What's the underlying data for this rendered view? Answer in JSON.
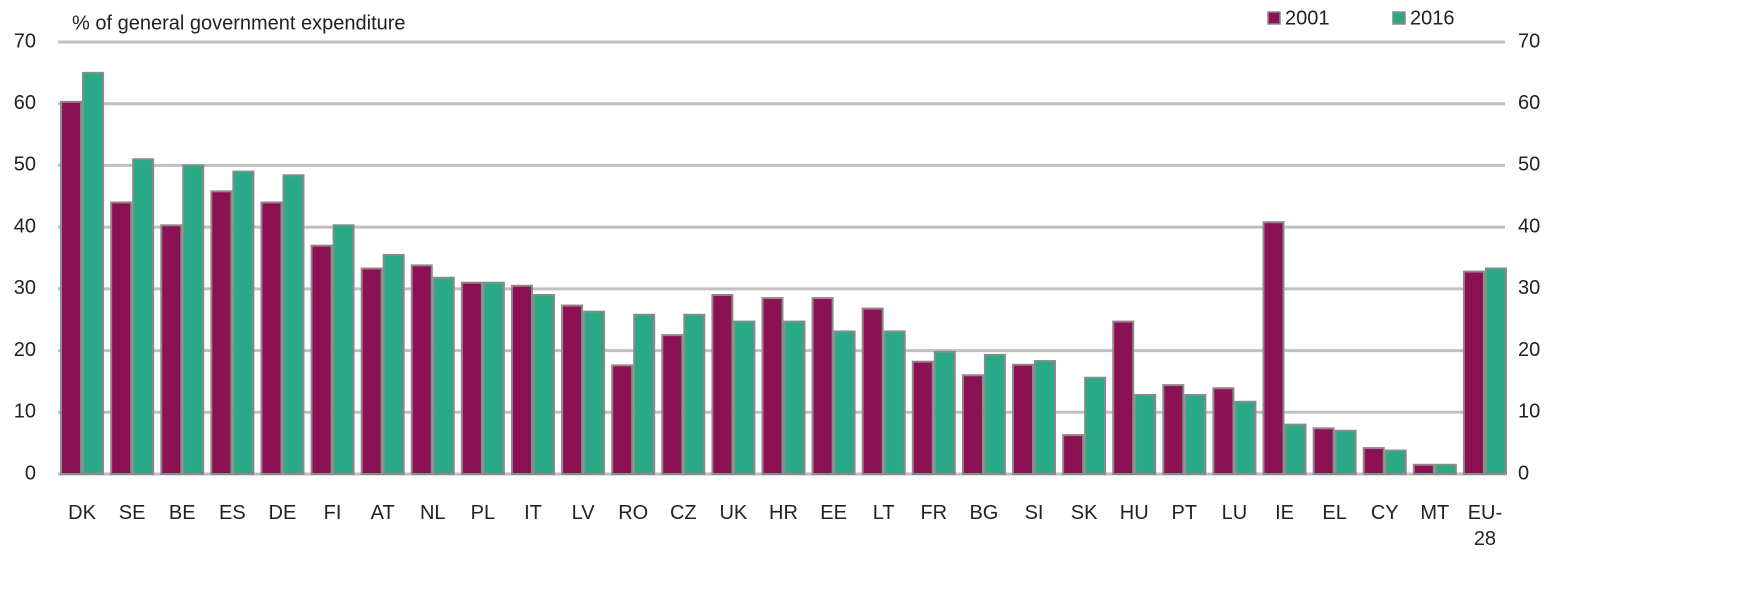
{
  "chart_data": {
    "type": "bar",
    "title": "% of general government expenditure",
    "categories": [
      "DK",
      "SE",
      "BE",
      "ES",
      "DE",
      "FI",
      "AT",
      "NL",
      "PL",
      "IT",
      "LV",
      "RO",
      "CZ",
      "UK",
      "HR",
      "EE",
      "LT",
      "FR",
      "BG",
      "SI",
      "SK",
      "HU",
      "PT",
      "LU",
      "IE",
      "EL",
      "CY",
      "MT",
      "EU-28"
    ],
    "series": [
      {
        "name": "2001",
        "color": "#8b1152",
        "values": [
          60.3,
          44,
          40.3,
          45.8,
          44,
          37,
          33.3,
          33.8,
          31,
          30.5,
          27.3,
          17.6,
          22.5,
          29,
          28.5,
          28.5,
          26.8,
          18.2,
          16,
          17.7,
          6.3,
          24.7,
          14.4,
          13.9,
          40.8,
          7.4,
          4.2,
          1.5,
          32.8
        ]
      },
      {
        "name": "2016",
        "color": "#2aa987",
        "values": [
          65,
          51,
          50,
          49,
          48.4,
          40.3,
          35.5,
          31.8,
          31,
          29,
          26.3,
          25.8,
          25.8,
          24.7,
          24.7,
          23.1,
          23.1,
          19.8,
          19.3,
          18.3,
          15.6,
          12.8,
          12.8,
          11.7,
          8,
          7,
          3.8,
          1.5,
          33.3
        ]
      }
    ],
    "ylim": [
      0,
      70
    ],
    "yticks": [
      0,
      10,
      20,
      30,
      40,
      50,
      60,
      70
    ],
    "y2lim": [
      0,
      70
    ],
    "y2ticks": [
      0,
      10,
      20,
      30,
      40,
      50,
      60,
      70
    ],
    "grid": true,
    "legend": "top-right"
  }
}
